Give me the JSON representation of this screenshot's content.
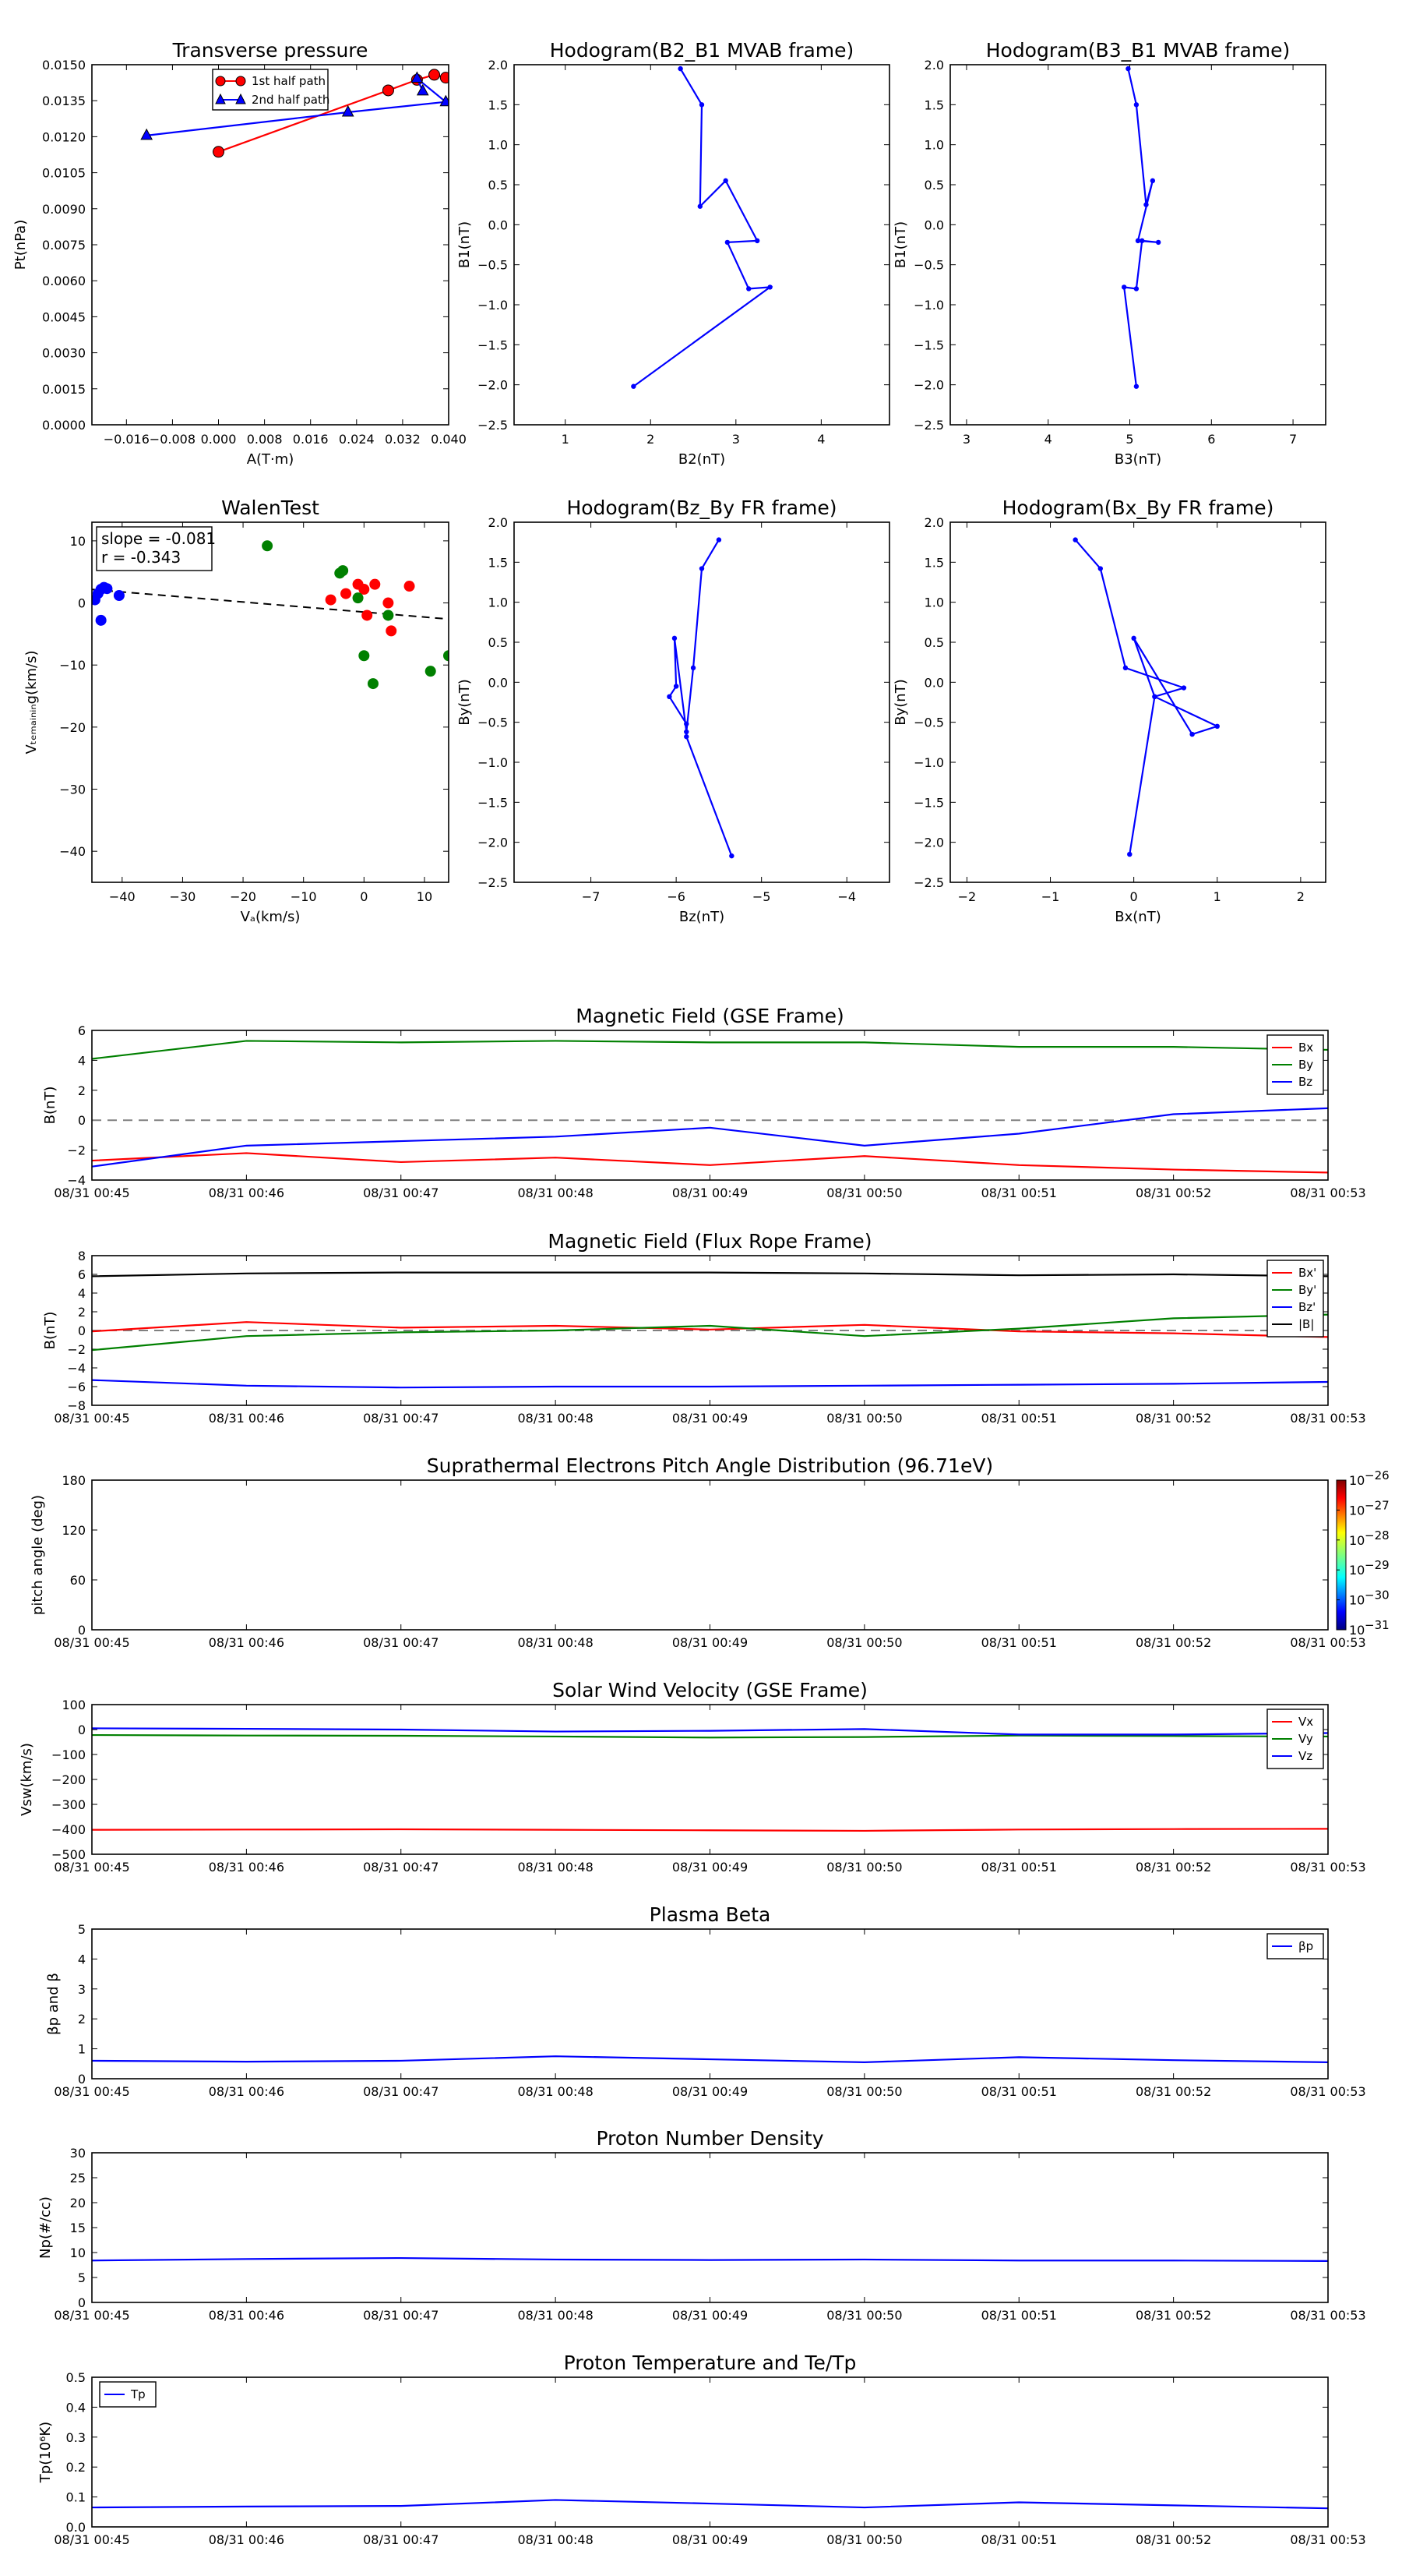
{
  "colors": {
    "red": "#ff0000",
    "green": "#008000",
    "blue": "#0000ff",
    "black": "#000000",
    "gray": "#808080"
  },
  "chart_data": [
    {
      "type": "scatter",
      "title": "Transverse pressure",
      "xlabel": "A(T·m)",
      "ylabel": "Pt(nPa)",
      "xlim": [
        -0.022,
        0.04
      ],
      "ylim": [
        0,
        0.015
      ],
      "xticks": [
        -0.016,
        -0.008,
        0.0,
        0.008,
        0.016,
        0.024,
        0.032,
        0.04
      ],
      "xtick_labels": [
        "−0.016",
        "−0.008",
        "0.000",
        "0.008",
        "0.016",
        "0.024",
        "0.032",
        "0.040"
      ],
      "yticks": [
        0,
        0.0015,
        0.003,
        0.0045,
        0.006,
        0.0075,
        0.009,
        0.0105,
        0.012,
        0.0135,
        0.015
      ],
      "ytick_labels": [
        "0.0000",
        "0.0015",
        "0.0030",
        "0.0045",
        "0.0060",
        "0.0075",
        "0.0090",
        "0.0105",
        "0.0120",
        "0.0135",
        "0.0150"
      ],
      "legend": {
        "position": "top-center",
        "entries": [
          "1st half path",
          "2nd half path"
        ]
      },
      "series": [
        {
          "name": "1st half path",
          "color": "#ff0000",
          "marker": "circle",
          "x": [
            0.0,
            0.0295,
            0.0345,
            0.0375,
            0.0395
          ],
          "y": [
            0.01137,
            0.01393,
            0.01437,
            0.01458,
            0.01446
          ]
        },
        {
          "name": "2nd half path",
          "color": "#0000ff",
          "marker": "triangle",
          "x": [
            -0.0125,
            0.0225,
            0.0395,
            0.0345,
            0.0355
          ],
          "y": [
            0.01205,
            0.01302,
            0.01345,
            0.01443,
            0.0139
          ]
        }
      ]
    },
    {
      "type": "line",
      "title": "Hodogram(B2_B1 MVAB frame)",
      "xlabel": "B2(nT)",
      "ylabel": "B1(nT)",
      "xlim": [
        0.4,
        4.8
      ],
      "ylim": [
        -2.5,
        2.0
      ],
      "xticks": [
        1,
        2,
        3,
        4
      ],
      "xtick_labels": [
        "1",
        "2",
        "3",
        "4"
      ],
      "yticks": [
        -2.5,
        -2.0,
        -1.5,
        -1.0,
        -0.5,
        0.0,
        0.5,
        1.0,
        1.5,
        2.0
      ],
      "ytick_labels": [
        "−2.5",
        "−2.0",
        "−1.5",
        "−1.0",
        "−0.5",
        "0.0",
        "0.5",
        "1.0",
        "1.5",
        "2.0"
      ],
      "series": [
        {
          "color": "#0000ff",
          "marker": "dot",
          "x": [
            2.35,
            2.6,
            2.58,
            2.88,
            3.25,
            2.9,
            3.15,
            3.4,
            1.8
          ],
          "y": [
            1.95,
            1.5,
            0.23,
            0.55,
            -0.2,
            -0.22,
            -0.8,
            -0.78,
            -2.02
          ]
        }
      ]
    },
    {
      "type": "line",
      "title": "Hodogram(B3_B1 MVAB frame)",
      "xlabel": "B3(nT)",
      "ylabel": "B1(nT)",
      "xlim": [
        2.8,
        7.4
      ],
      "ylim": [
        -2.5,
        2.0
      ],
      "xticks": [
        3,
        4,
        5,
        6,
        7
      ],
      "xtick_labels": [
        "3",
        "4",
        "5",
        "6",
        "7"
      ],
      "yticks": [
        -2.5,
        -2.0,
        -1.5,
        -1.0,
        -0.5,
        0.0,
        0.5,
        1.0,
        1.5,
        2.0
      ],
      "ytick_labels": [
        "−2.5",
        "−2.0",
        "−1.5",
        "−1.0",
        "−0.5",
        "0.0",
        "0.5",
        "1.0",
        "1.5",
        "2.0"
      ],
      "series": [
        {
          "color": "#0000ff",
          "marker": "dot",
          "x": [
            4.98,
            5.08,
            5.2,
            5.28,
            5.1,
            5.35,
            5.15,
            5.08,
            4.93,
            5.08
          ],
          "y": [
            1.95,
            1.5,
            0.25,
            0.55,
            -0.2,
            -0.22,
            -0.2,
            -0.8,
            -0.78,
            -2.02
          ]
        }
      ]
    },
    {
      "type": "scatter",
      "title": "WalenTest",
      "xlabel": "Vₐ(km/s)",
      "ylabel": "Vₜₑₘₐᵢₙᵢₙg(km/s)",
      "xlim": [
        -45,
        14
      ],
      "ylim": [
        -45,
        13
      ],
      "xticks": [
        -40,
        -30,
        -20,
        -10,
        0,
        10
      ],
      "xtick_labels": [
        "−40",
        "−30",
        "−20",
        "−10",
        "0",
        "10"
      ],
      "yticks": [
        -40,
        -30,
        -20,
        -10,
        0,
        10
      ],
      "ytick_labels": [
        "−40",
        "−30",
        "−20",
        "−10",
        "0",
        "10"
      ],
      "annotation": [
        "slope = -0.081",
        "r = -0.343"
      ],
      "fit_line": {
        "slope": -0.081,
        "intercept": -1.47,
        "style": "dashed",
        "color": "#000000"
      },
      "series": [
        {
          "color": "#0000ff",
          "x": [
            -43.5,
            -43,
            -42.5,
            -44.5,
            -44,
            -40.5,
            -43.5
          ],
          "y": [
            2.2,
            2.5,
            2.3,
            0.5,
            1.5,
            1.2,
            -2.8
          ]
        },
        {
          "color": "#ff0000",
          "x": [
            -5.5,
            -3,
            -1,
            0,
            1.8,
            4,
            4.5,
            7.5,
            0.5
          ],
          "y": [
            0.5,
            1.5,
            3,
            2.2,
            3,
            0,
            -4.5,
            2.7,
            -2
          ]
        },
        {
          "color": "#008000",
          "x": [
            -16,
            -4,
            -3.5,
            -1,
            0,
            4,
            1.5,
            11,
            14
          ],
          "y": [
            9.2,
            4.8,
            5.2,
            0.8,
            -8.5,
            -2,
            -13,
            -11,
            -8.5
          ]
        }
      ]
    },
    {
      "type": "line",
      "title": "Hodogram(Bz_By FR frame)",
      "xlabel": "Bz(nT)",
      "ylabel": "By(nT)",
      "xlim": [
        -7.9,
        -3.5
      ],
      "ylim": [
        -2.5,
        2.0
      ],
      "xticks": [
        -7,
        -6,
        -5,
        -4
      ],
      "xtick_labels": [
        "−7",
        "−6",
        "−5",
        "−4"
      ],
      "yticks": [
        -2.5,
        -2.0,
        -1.5,
        -1.0,
        -0.5,
        0.0,
        0.5,
        1.0,
        1.5,
        2.0
      ],
      "ytick_labels": [
        "−2.5",
        "−2.0",
        "−1.5",
        "−1.0",
        "−0.5",
        "0.0",
        "0.5",
        "1.0",
        "1.5",
        "2.0"
      ],
      "series": [
        {
          "color": "#0000ff",
          "marker": "dot",
          "x": [
            -5.5,
            -5.7,
            -5.8,
            -5.88,
            -6.02,
            -6.0,
            -6.08,
            -5.88,
            -5.88,
            -5.35
          ],
          "y": [
            1.78,
            1.42,
            0.18,
            -0.62,
            0.55,
            -0.05,
            -0.18,
            -0.52,
            -0.68,
            -2.17
          ]
        }
      ]
    },
    {
      "type": "line",
      "title": "Hodogram(Bx_By FR frame)",
      "xlabel": "Bx(nT)",
      "ylabel": "By(nT)",
      "xlim": [
        -2.2,
        2.3
      ],
      "ylim": [
        -2.5,
        2.0
      ],
      "xticks": [
        -2,
        -1,
        0,
        1,
        2
      ],
      "xtick_labels": [
        "−2",
        "−1",
        "0",
        "1",
        "2"
      ],
      "yticks": [
        -2.5,
        -2.0,
        -1.5,
        -1.0,
        -0.5,
        0.0,
        0.5,
        1.0,
        1.5,
        2.0
      ],
      "ytick_labels": [
        "−2.5",
        "−2.0",
        "−1.5",
        "−1.0",
        "−0.5",
        "0.0",
        "0.5",
        "1.0",
        "1.5",
        "2.0"
      ],
      "series": [
        {
          "color": "#0000ff",
          "marker": "dot",
          "x": [
            -0.7,
            -0.4,
            -0.1,
            0.6,
            0.25,
            0.0,
            0.7,
            1.0,
            0.25,
            -0.05
          ],
          "y": [
            1.78,
            1.42,
            0.18,
            -0.07,
            -0.18,
            0.55,
            -0.65,
            -0.55,
            -0.18,
            -2.15
          ]
        }
      ]
    },
    {
      "type": "line",
      "title": "Magnetic Field (GSE Frame)",
      "ylabel": "B(nT)",
      "x": [
        "08/31 00:45",
        "08/31 00:46",
        "08/31 00:47",
        "08/31 00:48",
        "08/31 00:49",
        "08/31 00:50",
        "08/31 00:51",
        "08/31 00:52",
        "08/31 00:53"
      ],
      "xlim": [
        0,
        8
      ],
      "ylim": [
        -4,
        6
      ],
      "yticks": [
        -4,
        -2,
        0,
        2,
        4,
        6
      ],
      "ytick_labels": [
        "−4",
        "−2",
        "0",
        "2",
        "4",
        "6"
      ],
      "zero_line": true,
      "legend": {
        "position": "top-right"
      },
      "series": [
        {
          "name": "Bx",
          "color": "#ff0000",
          "values": [
            -2.7,
            -2.2,
            -2.8,
            -2.5,
            -3.0,
            -2.4,
            -3.0,
            -3.3,
            -3.5
          ]
        },
        {
          "name": "By",
          "color": "#008000",
          "values": [
            4.1,
            5.3,
            5.2,
            5.3,
            5.2,
            5.2,
            4.9,
            4.9,
            4.7
          ]
        },
        {
          "name": "Bz",
          "color": "#0000ff",
          "values": [
            -3.1,
            -1.7,
            -1.4,
            -1.1,
            -0.5,
            -1.7,
            -0.9,
            0.4,
            0.8
          ]
        }
      ]
    },
    {
      "type": "line",
      "title": "Magnetic Field (Flux Rope Frame)",
      "ylabel": "B(nT)",
      "x": [
        "08/31 00:45",
        "08/31 00:46",
        "08/31 00:47",
        "08/31 00:48",
        "08/31 00:49",
        "08/31 00:50",
        "08/31 00:51",
        "08/31 00:52",
        "08/31 00:53"
      ],
      "xlim": [
        0,
        8
      ],
      "ylim": [
        -8,
        8
      ],
      "yticks": [
        -8,
        -6,
        -4,
        -2,
        0,
        2,
        4,
        6,
        8
      ],
      "ytick_labels": [
        "−8",
        "−6",
        "−4",
        "−2",
        "0",
        "2",
        "4",
        "6",
        "8"
      ],
      "zero_line": true,
      "legend": {
        "position": "top-right"
      },
      "series": [
        {
          "name": "Bx'",
          "color": "#ff0000",
          "values": [
            -0.1,
            0.9,
            0.3,
            0.5,
            0.1,
            0.6,
            -0.1,
            -0.3,
            -0.7
          ]
        },
        {
          "name": "By'",
          "color": "#008000",
          "values": [
            -2.1,
            -0.6,
            -0.2,
            0.0,
            0.5,
            -0.6,
            0.2,
            1.3,
            1.7
          ]
        },
        {
          "name": "Bz'",
          "color": "#0000ff",
          "values": [
            -5.3,
            -5.9,
            -6.1,
            -6.0,
            -6.0,
            -5.9,
            -5.8,
            -5.7,
            -5.5
          ]
        },
        {
          "name": "|B|",
          "color": "#000000",
          "values": [
            5.8,
            6.1,
            6.2,
            6.2,
            6.2,
            6.1,
            5.9,
            6.0,
            5.8
          ]
        }
      ]
    },
    {
      "type": "heatmap",
      "title": "Suprathermal Electrons Pitch Angle Distribution (96.71eV)",
      "ylabel": "pitch angle (deg)",
      "x": [
        "08/31 00:45",
        "08/31 00:46",
        "08/31 00:47",
        "08/31 00:48",
        "08/31 00:49",
        "08/31 00:50",
        "08/31 00:51",
        "08/31 00:52",
        "08/31 00:53"
      ],
      "ylim": [
        0,
        180
      ],
      "yticks": [
        0,
        60,
        120,
        180
      ],
      "ytick_labels": [
        "0",
        "60",
        "120",
        "180"
      ],
      "colorbar": {
        "base": "10",
        "exponents": [
          "−26",
          "−27",
          "−28",
          "−29",
          "−30",
          "−31"
        ]
      }
    },
    {
      "type": "line",
      "title": "Solar Wind Velocity (GSE Frame)",
      "ylabel": "Vsw(km/s)",
      "x": [
        "08/31 00:45",
        "08/31 00:46",
        "08/31 00:47",
        "08/31 00:48",
        "08/31 00:49",
        "08/31 00:50",
        "08/31 00:51",
        "08/31 00:52",
        "08/31 00:53"
      ],
      "xlim": [
        0,
        8
      ],
      "ylim": [
        -500,
        100
      ],
      "yticks": [
        -500,
        -400,
        -300,
        -200,
        -100,
        0,
        100
      ],
      "ytick_labels": [
        "−500",
        "−400",
        "−300",
        "−200",
        "−100",
        "0",
        "100"
      ],
      "legend": {
        "position": "top-right"
      },
      "series": [
        {
          "name": "Vx",
          "color": "#ff0000",
          "values": [
            -402,
            -401,
            -400,
            -402,
            -404,
            -406,
            -401,
            -399,
            -398
          ]
        },
        {
          "name": "Vy",
          "color": "#008000",
          "values": [
            -22,
            -24,
            -25,
            -28,
            -32,
            -30,
            -24,
            -26,
            -28
          ]
        },
        {
          "name": "Vz",
          "color": "#0000ff",
          "values": [
            5,
            3,
            0,
            -8,
            -5,
            2,
            -20,
            -20,
            -14
          ]
        }
      ]
    },
    {
      "type": "line",
      "title": "Plasma Beta",
      "ylabel": "βp and β",
      "x": [
        "08/31 00:45",
        "08/31 00:46",
        "08/31 00:47",
        "08/31 00:48",
        "08/31 00:49",
        "08/31 00:50",
        "08/31 00:51",
        "08/31 00:52",
        "08/31 00:53"
      ],
      "xlim": [
        0,
        8
      ],
      "ylim": [
        0,
        5
      ],
      "yticks": [
        0,
        1,
        2,
        3,
        4,
        5
      ],
      "ytick_labels": [
        "0",
        "1",
        "2",
        "3",
        "4",
        "5"
      ],
      "legend": {
        "position": "top-right"
      },
      "series": [
        {
          "name": "βp",
          "color": "#0000ff",
          "values": [
            0.6,
            0.57,
            0.6,
            0.75,
            0.65,
            0.55,
            0.72,
            0.62,
            0.55
          ]
        }
      ]
    },
    {
      "type": "line",
      "title": "Proton Number Density",
      "ylabel": "Np(#/cc)",
      "x": [
        "08/31 00:45",
        "08/31 00:46",
        "08/31 00:47",
        "08/31 00:48",
        "08/31 00:49",
        "08/31 00:50",
        "08/31 00:51",
        "08/31 00:52",
        "08/31 00:53"
      ],
      "xlim": [
        0,
        8
      ],
      "ylim": [
        0,
        30
      ],
      "yticks": [
        0,
        5,
        10,
        15,
        20,
        25,
        30
      ],
      "ytick_labels": [
        "0",
        "5",
        "10",
        "15",
        "20",
        "25",
        "30"
      ],
      "series": [
        {
          "color": "#0000ff",
          "values": [
            8.4,
            8.7,
            8.9,
            8.6,
            8.5,
            8.6,
            8.4,
            8.4,
            8.3
          ]
        }
      ]
    },
    {
      "type": "line",
      "title": "Proton Temperature and Te/Tp",
      "ylabel": "Tp(10⁶K)",
      "x": [
        "08/31 00:45",
        "08/31 00:46",
        "08/31 00:47",
        "08/31 00:48",
        "08/31 00:49",
        "08/31 00:50",
        "08/31 00:51",
        "08/31 00:52",
        "08/31 00:53"
      ],
      "xlim": [
        0,
        8
      ],
      "ylim": [
        0,
        0.5
      ],
      "yticks": [
        0,
        0.1,
        0.2,
        0.3,
        0.4,
        0.5
      ],
      "ytick_labels": [
        "0.0",
        "0.1",
        "0.2",
        "0.3",
        "0.4",
        "0.5"
      ],
      "legend": {
        "position": "top-left"
      },
      "series": [
        {
          "name": "Tp",
          "color": "#0000ff",
          "values": [
            0.065,
            0.068,
            0.07,
            0.09,
            0.078,
            0.065,
            0.082,
            0.072,
            0.062
          ]
        }
      ]
    }
  ]
}
